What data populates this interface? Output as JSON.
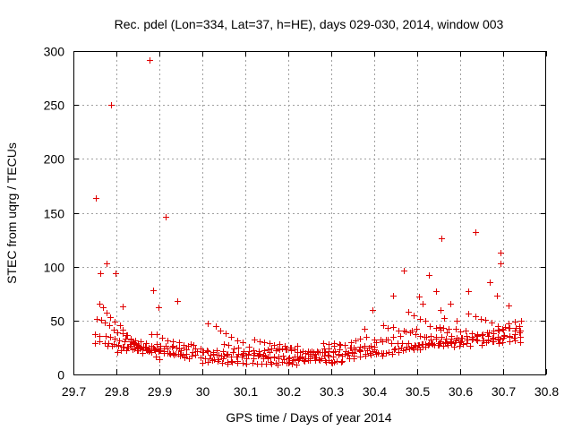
{
  "chart_data": {
    "type": "scatter",
    "title": "Rec. pdel (Lon=334, Lat=37, h=HE), days 029-030, 2014, window 003",
    "xlabel": "GPS time / Days of year 2014",
    "ylabel": "STEC from uqrg / TECUs",
    "xlim": [
      29.7,
      30.8
    ],
    "ylim": [
      0,
      300
    ],
    "xticks": [
      "29.7",
      "29.8",
      "29.9",
      "30",
      "30.1",
      "30.2",
      "30.3",
      "30.4",
      "30.5",
      "30.6",
      "30.7",
      "30.8"
    ],
    "yticks": [
      "0",
      "50",
      "100",
      "150",
      "200",
      "250",
      "300"
    ],
    "grid": true,
    "marker": "+",
    "color": "#e00000",
    "outliers": [
      [
        29.752,
        164
      ],
      [
        29.762,
        94
      ],
      [
        29.777,
        103
      ],
      [
        29.788,
        250
      ],
      [
        29.798,
        94
      ],
      [
        29.815,
        63
      ],
      [
        29.878,
        292
      ],
      [
        29.885,
        78
      ],
      [
        29.898,
        62
      ],
      [
        29.915,
        146
      ],
      [
        29.942,
        68
      ],
      [
        30.468,
        96
      ],
      [
        30.528,
        92
      ],
      [
        30.543,
        77
      ],
      [
        30.556,
        126
      ],
      [
        30.618,
        77
      ],
      [
        30.635,
        132
      ],
      [
        30.668,
        86
      ],
      [
        30.693,
        113
      ],
      [
        30.693,
        103
      ],
      [
        30.443,
        73
      ],
      [
        30.395,
        60
      ],
      [
        30.378,
        42
      ],
      [
        30.013,
        47
      ],
      [
        30.555,
        60
      ],
      [
        30.505,
        72
      ],
      [
        30.578,
        66
      ],
      [
        30.512,
        66
      ],
      [
        30.562,
        52
      ],
      [
        30.685,
        73
      ],
      [
        30.712,
        64
      ],
      [
        30.592,
        50
      ]
    ],
    "tracks": [
      {
        "xs": 29.75,
        "xe": 30.08,
        "ys": 30,
        "ye": 12,
        "n": 32
      },
      {
        "xs": 29.75,
        "xe": 29.97,
        "ys": 38,
        "ye": 14,
        "n": 20
      },
      {
        "xs": 29.755,
        "xe": 29.9,
        "ys": 52,
        "ye": 15,
        "n": 16
      },
      {
        "xs": 29.76,
        "xe": 29.86,
        "ys": 66,
        "ye": 20,
        "n": 12
      },
      {
        "xs": 29.78,
        "xe": 29.96,
        "ys": 28,
        "ye": 18,
        "n": 16
      },
      {
        "xs": 29.8,
        "xe": 29.98,
        "ys": 22,
        "ye": 26,
        "n": 16
      },
      {
        "xs": 29.82,
        "xe": 30.0,
        "ys": 32,
        "ye": 20,
        "n": 16
      },
      {
        "xs": 29.88,
        "xe": 30.05,
        "ys": 38,
        "ye": 17,
        "n": 14
      },
      {
        "xs": 30.0,
        "xe": 30.32,
        "ys": 22,
        "ye": 12,
        "n": 28
      },
      {
        "xs": 30.0,
        "xe": 30.22,
        "ys": 12,
        "ye": 10,
        "n": 20
      },
      {
        "xs": 30.02,
        "xe": 30.25,
        "ys": 18,
        "ye": 14,
        "n": 20
      },
      {
        "xs": 30.03,
        "xe": 30.17,
        "ys": 44,
        "ye": 10,
        "n": 12
      },
      {
        "xs": 30.05,
        "xe": 30.2,
        "ys": 28,
        "ye": 12,
        "n": 14
      },
      {
        "xs": 30.08,
        "xe": 30.22,
        "ys": 18,
        "ye": 26,
        "n": 12
      },
      {
        "xs": 30.12,
        "xe": 30.3,
        "ys": 34,
        "ye": 12,
        "n": 16
      },
      {
        "xs": 30.15,
        "xe": 30.35,
        "ys": 24,
        "ye": 18,
        "n": 18
      },
      {
        "xs": 30.2,
        "xe": 30.4,
        "ys": 12,
        "ye": 22,
        "n": 18
      },
      {
        "xs": 30.22,
        "xe": 30.38,
        "ys": 16,
        "ye": 34,
        "n": 14
      },
      {
        "xs": 30.25,
        "xe": 30.4,
        "ys": 20,
        "ye": 26,
        "n": 14
      },
      {
        "xs": 30.28,
        "xe": 30.42,
        "ys": 30,
        "ye": 20,
        "n": 12
      },
      {
        "xs": 30.3,
        "xe": 30.52,
        "ys": 12,
        "ye": 25,
        "n": 18
      },
      {
        "xs": 30.35,
        "xe": 30.5,
        "ys": 22,
        "ye": 42,
        "n": 12
      },
      {
        "xs": 30.38,
        "xe": 30.55,
        "ys": 18,
        "ye": 30,
        "n": 14
      },
      {
        "xs": 30.4,
        "xe": 30.6,
        "ys": 32,
        "ye": 26,
        "n": 16
      },
      {
        "xs": 30.42,
        "xe": 30.58,
        "ys": 46,
        "ye": 28,
        "n": 14
      },
      {
        "xs": 30.45,
        "xe": 30.74,
        "ys": 24,
        "ye": 36,
        "n": 24
      },
      {
        "xs": 30.48,
        "xe": 30.62,
        "ys": 58,
        "ye": 26,
        "n": 12
      },
      {
        "xs": 30.5,
        "xe": 30.74,
        "ys": 26,
        "ye": 44,
        "n": 20
      },
      {
        "xs": 30.52,
        "xe": 30.7,
        "ys": 36,
        "ye": 30,
        "n": 16
      },
      {
        "xs": 30.55,
        "xe": 30.74,
        "ys": 44,
        "ye": 30,
        "n": 16
      },
      {
        "xs": 30.6,
        "xe": 30.74,
        "ys": 30,
        "ye": 50,
        "n": 12
      },
      {
        "xs": 30.62,
        "xe": 30.74,
        "ys": 56,
        "ye": 38,
        "n": 10
      },
      {
        "xs": 30.65,
        "xe": 30.74,
        "ys": 28,
        "ye": 40,
        "n": 8
      }
    ]
  }
}
